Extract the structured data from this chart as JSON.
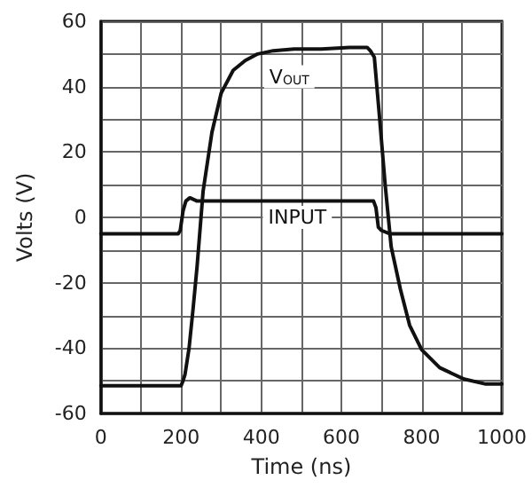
{
  "chart_data": {
    "type": "line",
    "xlabel": "Time (ns)",
    "ylabel": "Volts (V)",
    "xlim": [
      0,
      1000
    ],
    "ylim": [
      -60,
      60
    ],
    "xticks": [
      0,
      {
        "value": 100,
        "label": null
      },
      200,
      {
        "value": 300,
        "label": null
      },
      400,
      {
        "value": 500,
        "label": null
      },
      600,
      {
        "value": 700,
        "label": null
      },
      800,
      {
        "value": 900,
        "label": null
      },
      1000
    ],
    "yticks": [
      -60,
      {
        "value": -50,
        "label": null
      },
      -40,
      {
        "value": -30,
        "label": null
      },
      -20,
      {
        "value": -10,
        "label": null
      },
      0,
      {
        "value": 10,
        "label": null
      },
      20,
      {
        "value": 30,
        "label": null
      },
      40,
      {
        "value": 50,
        "label": null
      },
      60
    ],
    "grid": true,
    "marker": "none",
    "line_style": "solid",
    "series": [
      {
        "color": "#111111",
        "x": [
          0,
          200,
          205,
          210,
          220,
          230,
          240,
          255,
          277,
          300,
          330,
          360,
          391,
          430,
          482,
          550,
          620,
          664,
          672,
          682,
          694,
          709,
          724,
          747,
          770,
          800,
          845,
          906,
          960,
          1000
        ],
        "values": [
          -51.5,
          -51.5,
          -50,
          -48,
          -40,
          -28,
          -15,
          8,
          26,
          38,
          45,
          48,
          50,
          51,
          51.5,
          51.5,
          52,
          52,
          51,
          49,
          32,
          10,
          -9,
          -22,
          -33,
          -40.5,
          -46,
          -49.5,
          -51,
          -51
        ]
      },
      {
        "color": "#111111",
        "x": [
          0,
          193,
          198,
          205,
          212,
          222,
          240,
          400,
          600,
          680,
          686,
          692,
          700,
          720,
          800,
          1000
        ],
        "values": [
          -5,
          -5,
          -4,
          2,
          5,
          6,
          5,
          5,
          5,
          5,
          3,
          -3,
          -4,
          -5,
          -5,
          -5
        ]
      }
    ],
    "annotations": [
      {
        "text": "V$_{OUT}$",
        "x": 470,
        "y": 43
      },
      {
        "text": "INPUT",
        "x": 490,
        "y": 0
      }
    ]
  }
}
